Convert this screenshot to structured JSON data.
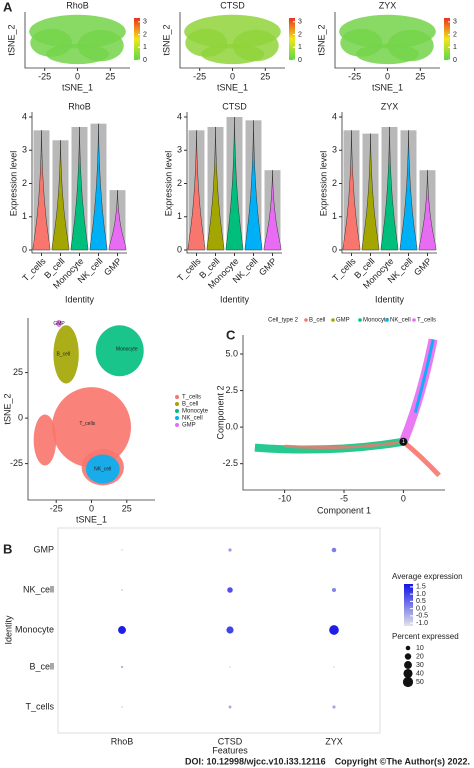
{
  "panel_labels": [
    "A",
    "B",
    "C"
  ],
  "footer": {
    "doi": "DOI: 10.12998/wjcc.v10.i33.12116",
    "copyright": "Copyright ©The Author(s) 2022."
  },
  "chart_data": [
    {
      "type": "feature-tsne",
      "title": "RhoB",
      "xlabel": "tSNE_1",
      "ylabel": "tSNE_2",
      "xlim": [
        -40,
        40
      ],
      "xticks": [
        -25,
        0,
        25
      ],
      "colorbar_lim": [
        0,
        3.3
      ],
      "colorbar_ticks": [
        3,
        2,
        1,
        0
      ],
      "color": "#74d44a"
    },
    {
      "type": "feature-tsne",
      "title": "CTSD",
      "xlabel": "tSNE_1",
      "ylabel": "tSNE_2",
      "xlim": [
        -40,
        40
      ],
      "xticks": [
        -25,
        0,
        25
      ],
      "colorbar_lim": [
        0,
        3.3
      ],
      "colorbar_ticks": [
        3,
        2,
        1,
        0
      ],
      "color": "#8fd43a"
    },
    {
      "type": "feature-tsne",
      "title": "ZYX",
      "xlabel": "tSNE_1",
      "ylabel": "tSNE_2",
      "xlim": [
        -40,
        40
      ],
      "xticks": [
        -25,
        0,
        25
      ],
      "colorbar_lim": [
        0,
        3.3
      ],
      "colorbar_ticks": [
        3,
        2,
        1,
        0
      ],
      "color": "#74d44a"
    },
    {
      "type": "violin",
      "title": "RhoB",
      "xlabel": "Identity",
      "ylabel": "Expression level",
      "categories": [
        "T_cells",
        "B_cell",
        "Monocyte",
        "NK_cell",
        "GMP"
      ],
      "colors": [
        "#f8766d",
        "#a3a500",
        "#00bf7d",
        "#00b0f6",
        "#e76bf3"
      ],
      "values": [
        3.6,
        3.3,
        3.7,
        3.8,
        1.8
      ],
      "ylim": [
        0,
        4
      ],
      "yticks": [
        0,
        1,
        2,
        3,
        4
      ]
    },
    {
      "type": "violin",
      "title": "CTSD",
      "xlabel": "Identity",
      "ylabel": "Expression level",
      "categories": [
        "T_cells",
        "B_cell",
        "Monocyte",
        "NK_cell",
        "GMP"
      ],
      "colors": [
        "#f8766d",
        "#a3a500",
        "#00bf7d",
        "#00b0f6",
        "#e76bf3"
      ],
      "values": [
        3.6,
        3.7,
        4.0,
        3.9,
        2.4
      ],
      "ylim": [
        0,
        4
      ],
      "yticks": [
        0,
        1,
        2,
        3,
        4
      ]
    },
    {
      "type": "violin",
      "title": "ZYX",
      "xlabel": "Identity",
      "ylabel": "Expression level",
      "categories": [
        "T_cells",
        "B_cell",
        "Monocyte",
        "NK_cell",
        "GMP"
      ],
      "colors": [
        "#f8766d",
        "#a3a500",
        "#00bf7d",
        "#00b0f6",
        "#e76bf3"
      ],
      "values": [
        3.6,
        3.5,
        3.7,
        3.6,
        2.4
      ],
      "ylim": [
        0,
        4
      ],
      "yticks": [
        0,
        1,
        2,
        3,
        4
      ]
    },
    {
      "type": "cluster-tsne",
      "xlabel": "tSNE_1",
      "ylabel": "tSNE_2",
      "xlim": [
        -45,
        45
      ],
      "ylim": [
        -45,
        55
      ],
      "xticks": [
        -25,
        0,
        25
      ],
      "yticks": [
        25,
        0,
        -25
      ],
      "categories": [
        "T_cells",
        "B_cell",
        "Monocyte",
        "NK_cell",
        "GMP"
      ],
      "colors": [
        "#f8766d",
        "#a3a500",
        "#00bf7d",
        "#00b0f6",
        "#e76bf3"
      ]
    },
    {
      "type": "trajectory",
      "legend_title": "Cell_type 2",
      "xlabel": "Component 1",
      "ylabel": "Component 2",
      "xlim": [
        -13.5,
        3.5
      ],
      "ylim": [
        -4.3,
        6.3
      ],
      "xticks": [
        -10,
        -5,
        0
      ],
      "yticks": [
        {
          "value": 5,
          "label": "5.0"
        },
        {
          "value": 2.5,
          "label": "2.5"
        },
        {
          "value": 0,
          "label": "0.0"
        },
        {
          "value": -2.5,
          "label": "-2.5"
        }
      ],
      "categories": [
        "B_cell",
        "GMP",
        "Monocyte",
        "NK_cell",
        "T_cells"
      ],
      "colors": [
        "#f8766d",
        "#a3a500",
        "#00bf7d",
        "#00b0f6",
        "#e76bf3"
      ],
      "branch_point_label": "1"
    },
    {
      "type": "dot",
      "xlabel": "Features",
      "ylabel": "Identity",
      "features": [
        "RhoB",
        "CTSD",
        "ZYX"
      ],
      "identities": [
        "GMP",
        "NK_cell",
        "Monocyte",
        "B_cell",
        "T_cells"
      ],
      "avg_expression": [
        [
          -0.8,
          -0.5,
          1.5,
          -0.6,
          -0.7
        ],
        [
          -0.2,
          0.8,
          1.0,
          -0.9,
          -0.4
        ],
        [
          0.2,
          0.1,
          1.5,
          -0.9,
          -0.4
        ]
      ],
      "percent_expressed": [
        [
          1,
          1,
          30,
          3,
          1
        ],
        [
          5,
          15,
          25,
          1,
          4
        ],
        [
          10,
          8,
          45,
          1,
          5
        ]
      ],
      "color_legend_title": "Average expression",
      "color_lim": [
        -1.2,
        1.7
      ],
      "color_ticks": [
        {
          "value": 1.5,
          "label": "1.5"
        },
        {
          "value": 1,
          "label": "1.0"
        },
        {
          "value": 0.5,
          "label": "0.5"
        },
        {
          "value": 0,
          "label": "0.0"
        },
        {
          "value": -0.5,
          "label": "-0.5"
        },
        {
          "value": -1,
          "label": "-1.0"
        }
      ],
      "size_legend_title": "Percent expressed",
      "size_ticks": [
        10,
        20,
        30,
        40,
        50
      ]
    }
  ]
}
